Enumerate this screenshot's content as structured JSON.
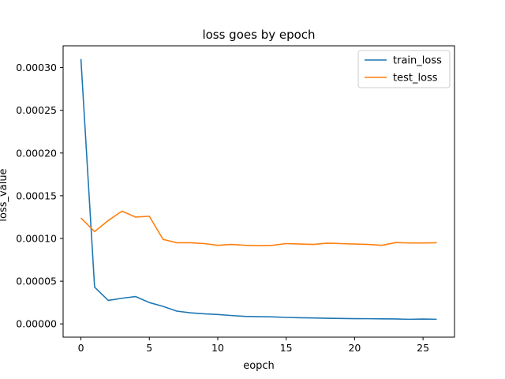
{
  "chart_data": {
    "type": "line",
    "title": "loss goes by epoch",
    "xlabel": "eopch",
    "ylabel": "loss_value",
    "xlim": [
      -1.3,
      27.3
    ],
    "ylim": [
      -1.55e-05,
      0.0003255
    ],
    "xticks": [
      0,
      5,
      10,
      15,
      20,
      25
    ],
    "yticks": [
      0.0,
      5e-05,
      0.0001,
      0.00015,
      0.0002,
      0.00025,
      0.0003
    ],
    "ytick_labels": [
      "0.00000",
      "0.00005",
      "0.00010",
      "0.00015",
      "0.00020",
      "0.00025",
      "0.00030"
    ],
    "grid": false,
    "legend_position": "upper right",
    "x": [
      0,
      1,
      2,
      3,
      4,
      5,
      6,
      7,
      8,
      9,
      10,
      11,
      12,
      13,
      14,
      15,
      16,
      17,
      18,
      19,
      20,
      21,
      22,
      23,
      24,
      25,
      26
    ],
    "series": [
      {
        "name": "train_loss",
        "color": "#1f77b4",
        "values": [
          0.00031,
          4.3e-05,
          2.75e-05,
          3e-05,
          3.2e-05,
          2.5e-05,
          2.05e-05,
          1.5e-05,
          1.3e-05,
          1.18e-05,
          1.1e-05,
          9.8e-06,
          8.8e-06,
          8.5e-06,
          8.2e-06,
          7.6e-06,
          7.2e-06,
          7e-06,
          6.6e-06,
          6.4e-06,
          6.2e-06,
          6.1e-06,
          5.9e-06,
          5.8e-06,
          5.4e-06,
          5.7e-06,
          5.4e-06
        ]
      },
      {
        "name": "test_loss",
        "color": "#ff7f0e",
        "values": [
          0.000124,
          0.000108,
          0.000121,
          0.000132,
          0.000125,
          0.000126,
          9.9e-05,
          9.5e-05,
          9.5e-05,
          9.4e-05,
          9.2e-05,
          9.3e-05,
          9.2e-05,
          9.15e-05,
          9.2e-05,
          9.4e-05,
          9.35e-05,
          9.3e-05,
          9.45e-05,
          9.4e-05,
          9.35e-05,
          9.3e-05,
          9.2e-05,
          9.52e-05,
          9.48e-05,
          9.48e-05,
          9.5e-05
        ]
      }
    ]
  }
}
